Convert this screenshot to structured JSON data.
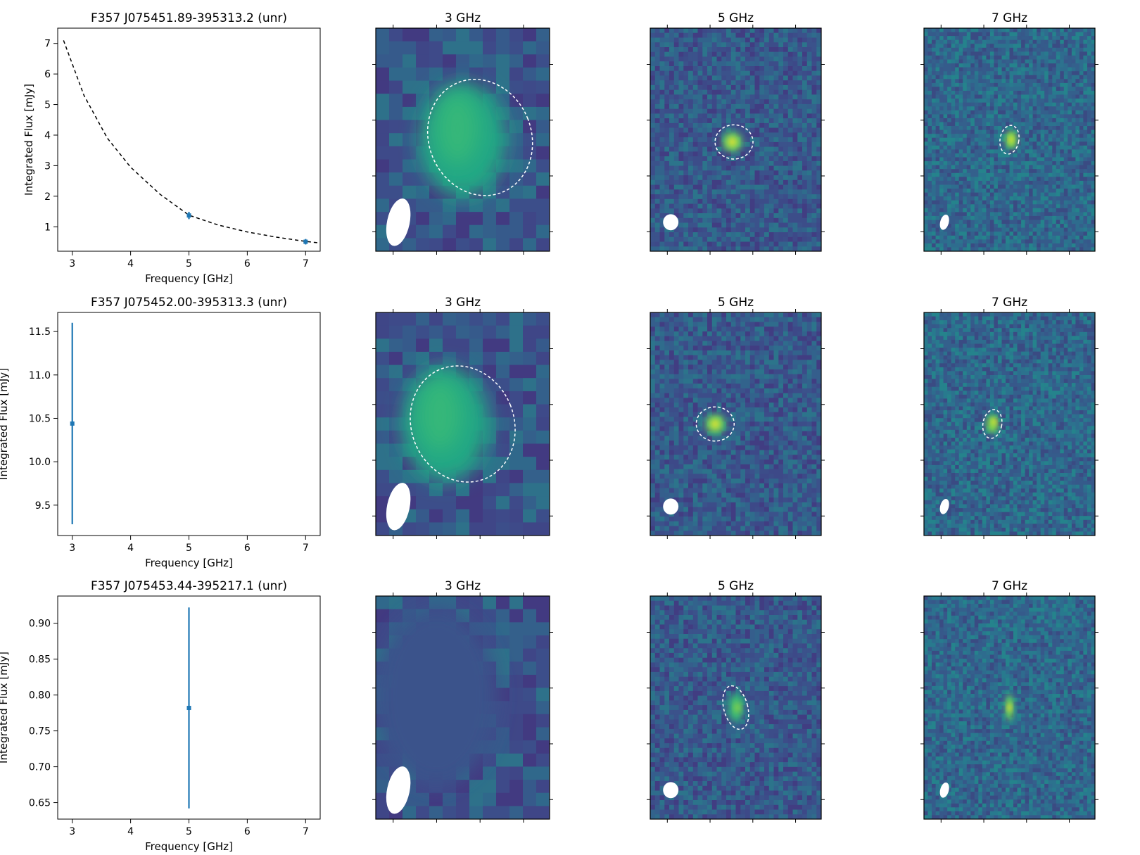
{
  "chart_data": [
    {
      "panel_type": "sed",
      "type": "scatter",
      "title": "F357 J075451.89-395313.2 (unr)",
      "xlabel": "Frequency [GHz]",
      "ylabel": "Integrated Flux [mJy]",
      "xlim": [
        2.75,
        7.25
      ],
      "ylim": [
        0.2,
        7.5
      ],
      "xticks": [
        "3",
        "4",
        "5",
        "6",
        "7"
      ],
      "yticks": [
        "1",
        "2",
        "3",
        "4",
        "5",
        "6",
        "7"
      ],
      "points": [
        {
          "x": 5,
          "y": 1.37,
          "err": 0.12
        },
        {
          "x": 7,
          "y": 0.51,
          "err": 0.09
        }
      ],
      "fit": {
        "style": "dashed",
        "model": "power-law",
        "x": [
          2.85,
          3.2,
          3.6,
          4.0,
          4.5,
          5.0,
          5.5,
          6.0,
          6.5,
          7.0,
          7.25
        ],
        "y": [
          7.1,
          5.3,
          3.9,
          2.95,
          2.07,
          1.38,
          1.06,
          0.83,
          0.66,
          0.52,
          0.47
        ]
      }
    },
    {
      "panel_type": "image",
      "type": "heatmap",
      "title": "3 GHz",
      "bg": "#3e4a89",
      "beam": {
        "cx": 0.13,
        "cy": 0.87,
        "rx": 0.065,
        "ry": 0.108,
        "rot": 12
      },
      "contour": {
        "cx": 0.6,
        "cy": 0.49,
        "rx": 0.295,
        "ry": 0.265,
        "rot": -22
      },
      "blobs": [
        {
          "cx": 0.5,
          "cy": 0.5,
          "rx": 0.25,
          "ry": 0.26,
          "color": "#22a884"
        },
        {
          "cx": 0.47,
          "cy": 0.45,
          "rx": 0.12,
          "ry": 0.16,
          "color": "#35b779"
        }
      ],
      "pixels": 13,
      "xticks": 4,
      "yticks": 4
    },
    {
      "panel_type": "image",
      "type": "heatmap",
      "title": "5 GHz",
      "bg": "#3b528b",
      "beam": {
        "cx": 0.12,
        "cy": 0.87,
        "rx": 0.045,
        "ry": 0.036,
        "rot": 0
      },
      "contour": {
        "cx": 0.49,
        "cy": 0.51,
        "rx": 0.1,
        "ry": 0.085,
        "rot": 90
      },
      "blobs": [
        {
          "cx": 0.48,
          "cy": 0.51,
          "rx": 0.06,
          "ry": 0.045,
          "color": "#5ec962"
        },
        {
          "cx": 0.48,
          "cy": 0.51,
          "rx": 0.025,
          "ry": 0.02,
          "color": "#fde725"
        }
      ],
      "pixels": 36,
      "xticks": 4,
      "yticks": 4
    },
    {
      "panel_type": "image",
      "type": "heatmap",
      "title": "7 GHz",
      "bg": "#2c728e",
      "beam": {
        "cx": 0.12,
        "cy": 0.87,
        "rx": 0.025,
        "ry": 0.035,
        "rot": 15
      },
      "contour": {
        "cx": 0.5,
        "cy": 0.5,
        "rx": 0.055,
        "ry": 0.065,
        "rot": 10
      },
      "blobs": [
        {
          "cx": 0.51,
          "cy": 0.5,
          "rx": 0.035,
          "ry": 0.04,
          "color": "#7ad151"
        },
        {
          "cx": 0.51,
          "cy": 0.5,
          "rx": 0.012,
          "ry": 0.017,
          "color": "#fde725"
        }
      ],
      "pixels": 44,
      "xticks": 4,
      "yticks": 4
    },
    {
      "panel_type": "sed",
      "type": "scatter",
      "title": "F357 J075452.00-395313.3 (unr)",
      "xlabel": "Frequency [GHz]",
      "ylabel": "Integrated Flux [mJy]",
      "xlim": [
        2.75,
        7.25
      ],
      "ylim": [
        9.15,
        11.72
      ],
      "xticks": [
        "3",
        "4",
        "5",
        "6",
        "7"
      ],
      "yticks": [
        "9.5",
        "10.0",
        "10.5",
        "11.0",
        "11.5"
      ],
      "points": [
        {
          "x": 3,
          "y": 10.44,
          "err": 1.16
        }
      ]
    },
    {
      "panel_type": "image",
      "type": "heatmap",
      "title": "3 GHz",
      "bg": "#3e4a89",
      "beam": {
        "cx": 0.13,
        "cy": 0.87,
        "rx": 0.065,
        "ry": 0.108,
        "rot": 12
      },
      "contour": {
        "cx": 0.5,
        "cy": 0.5,
        "rx": 0.295,
        "ry": 0.265,
        "rot": -22
      },
      "blobs": [
        {
          "cx": 0.4,
          "cy": 0.5,
          "rx": 0.25,
          "ry": 0.26,
          "color": "#22a884"
        },
        {
          "cx": 0.37,
          "cy": 0.46,
          "rx": 0.12,
          "ry": 0.16,
          "color": "#35b779"
        }
      ],
      "pixels": 13,
      "xticks": 4,
      "yticks": 4
    },
    {
      "panel_type": "image",
      "type": "heatmap",
      "title": "5 GHz",
      "bg": "#3b528b",
      "beam": {
        "cx": 0.12,
        "cy": 0.87,
        "rx": 0.045,
        "ry": 0.036,
        "rot": 0
      },
      "contour": {
        "cx": 0.38,
        "cy": 0.5,
        "rx": 0.1,
        "ry": 0.085,
        "rot": 90
      },
      "blobs": [
        {
          "cx": 0.38,
          "cy": 0.5,
          "rx": 0.06,
          "ry": 0.045,
          "color": "#5ec962"
        },
        {
          "cx": 0.38,
          "cy": 0.5,
          "rx": 0.025,
          "ry": 0.02,
          "color": "#fde725"
        }
      ],
      "pixels": 36,
      "xticks": 4,
      "yticks": 4
    },
    {
      "panel_type": "image",
      "type": "heatmap",
      "title": "7 GHz",
      "bg": "#2c728e",
      "beam": {
        "cx": 0.12,
        "cy": 0.87,
        "rx": 0.025,
        "ry": 0.035,
        "rot": 15
      },
      "contour": {
        "cx": 0.4,
        "cy": 0.5,
        "rx": 0.055,
        "ry": 0.065,
        "rot": 10
      },
      "blobs": [
        {
          "cx": 0.4,
          "cy": 0.5,
          "rx": 0.035,
          "ry": 0.04,
          "color": "#7ad151"
        },
        {
          "cx": 0.41,
          "cy": 0.49,
          "rx": 0.012,
          "ry": 0.017,
          "color": "#fde725"
        }
      ],
      "pixels": 44,
      "xticks": 4,
      "yticks": 4
    },
    {
      "panel_type": "sed",
      "type": "scatter",
      "title": "F357 J075453.44-395217.1 (unr)",
      "xlabel": "Frequency [GHz]",
      "ylabel": "Integrated Flux [mJy]",
      "xlim": [
        2.75,
        7.25
      ],
      "ylim": [
        0.627,
        0.938
      ],
      "xticks": [
        "3",
        "4",
        "5",
        "6",
        "7"
      ],
      "yticks": [
        "0.65",
        "0.70",
        "0.75",
        "0.80",
        "0.85",
        "0.90"
      ],
      "points": [
        {
          "x": 5,
          "y": 0.782,
          "err": 0.14
        }
      ]
    },
    {
      "panel_type": "image",
      "type": "heatmap",
      "title": "3 GHz",
      "bg": "#3e4a89",
      "beam": {
        "cx": 0.13,
        "cy": 0.87,
        "rx": 0.065,
        "ry": 0.108,
        "rot": 12
      },
      "blobs": [
        {
          "cx": 0.35,
          "cy": 0.45,
          "rx": 0.35,
          "ry": 0.4,
          "color": "#3b528b"
        }
      ],
      "pixels": 13,
      "xticks": 4,
      "yticks": 4
    },
    {
      "panel_type": "image",
      "type": "heatmap",
      "title": "5 GHz",
      "bg": "#3b528b",
      "beam": {
        "cx": 0.12,
        "cy": 0.87,
        "rx": 0.045,
        "ry": 0.036,
        "rot": 0
      },
      "contour": {
        "cx": 0.5,
        "cy": 0.5,
        "rx": 0.07,
        "ry": 0.1,
        "rot": -15
      },
      "blobs": [
        {
          "cx": 0.5,
          "cy": 0.5,
          "rx": 0.045,
          "ry": 0.065,
          "color": "#35b779"
        },
        {
          "cx": 0.51,
          "cy": 0.5,
          "rx": 0.017,
          "ry": 0.025,
          "color": "#a0da39"
        }
      ],
      "pixels": 36,
      "xticks": 4,
      "yticks": 4
    },
    {
      "panel_type": "image",
      "type": "heatmap",
      "title": "7 GHz",
      "bg": "#2c728e",
      "beam": {
        "cx": 0.12,
        "cy": 0.87,
        "rx": 0.025,
        "ry": 0.035,
        "rot": 15
      },
      "blobs": [
        {
          "cx": 0.5,
          "cy": 0.5,
          "rx": 0.025,
          "ry": 0.06,
          "color": "#5ec962"
        },
        {
          "cx": 0.5,
          "cy": 0.5,
          "rx": 0.012,
          "ry": 0.02,
          "color": "#fde725"
        }
      ],
      "pixels": 44,
      "xticks": 4,
      "yticks": 4
    }
  ]
}
